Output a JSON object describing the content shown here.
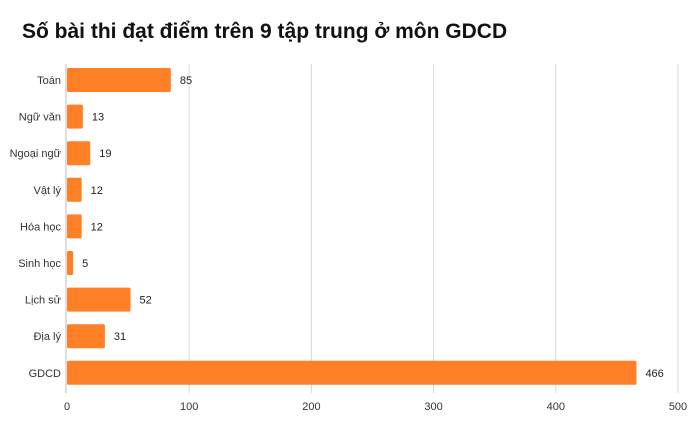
{
  "chart_data": {
    "type": "bar",
    "orientation": "horizontal",
    "title": "Số bài thi đạt điểm trên 9 tập trung ở môn GDCD",
    "categories": [
      "Toán",
      "Ngữ văn",
      "Ngoại ngữ",
      "Vật lý",
      "Hóa học",
      "Sinh học",
      "Lịch sử",
      "Địa lý",
      "GDCD"
    ],
    "values": [
      85,
      13,
      19,
      12,
      12,
      5,
      52,
      31,
      466
    ],
    "xlim": [
      0,
      500
    ],
    "xticks": [
      0,
      100,
      200,
      300,
      400,
      500
    ],
    "grid": "vertical",
    "legend": "none",
    "bar_color": "#FF7F27",
    "grid_color": "#D9D9D9"
  }
}
